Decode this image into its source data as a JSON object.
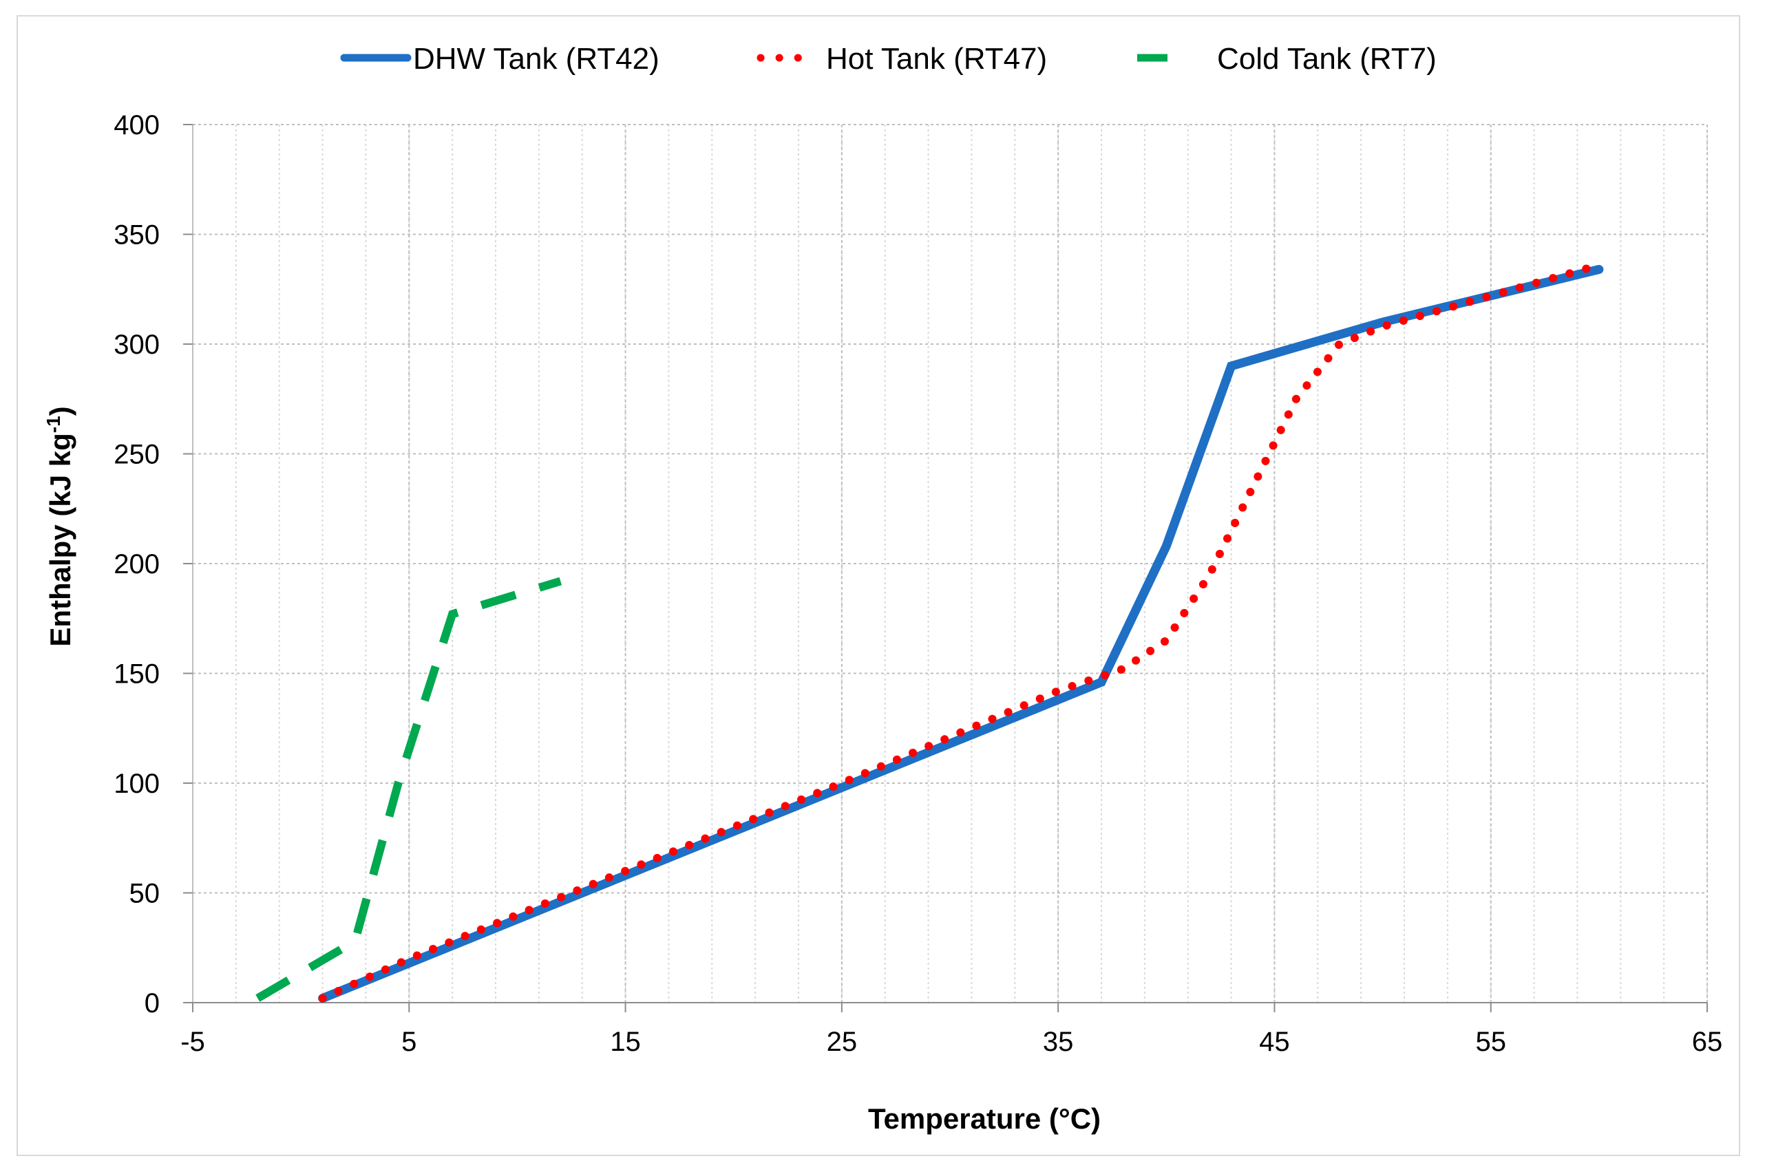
{
  "chart_data": {
    "type": "line",
    "title": "",
    "xlabel": "Temperature  (°C)",
    "ylabel_main": "Enthalpy  (kJ  kg",
    "ylabel_sup": "-1",
    "ylabel_close": ")",
    "xlim": [
      -5,
      65
    ],
    "ylim": [
      0,
      400
    ],
    "x_ticks": [
      -5,
      5,
      15,
      25,
      35,
      45,
      55,
      65
    ],
    "y_ticks": [
      0,
      50,
      100,
      150,
      200,
      250,
      300,
      350,
      400
    ],
    "x_minor_step": 2,
    "grid": "dotted major and minor",
    "legend_position": "top",
    "series": [
      {
        "name": "DHW Tank (RT42)",
        "color": "#1f6fc5",
        "style": "solid",
        "x": [
          1,
          5,
          15,
          25,
          35,
          37,
          40,
          43,
          50,
          60
        ],
        "y": [
          2,
          18,
          58,
          98,
          138,
          146,
          208,
          290,
          310,
          334
        ]
      },
      {
        "name": "Hot Tank (RT47)",
        "color": "#ff0000",
        "style": "dotted",
        "x": [
          1,
          5,
          15,
          25,
          35,
          38,
          40,
          42,
          44,
          46,
          48,
          50,
          55,
          60
        ],
        "y": [
          2,
          20,
          60,
          100,
          142,
          152,
          165,
          195,
          235,
          275,
          300,
          308,
          322,
          336
        ]
      },
      {
        "name": "Cold Tank (RT7)",
        "color": "#00a84f",
        "style": "dashed",
        "x": [
          -2,
          2.5,
          4.5,
          7,
          12
        ],
        "y": [
          2,
          28,
          100,
          177,
          192
        ]
      }
    ]
  }
}
